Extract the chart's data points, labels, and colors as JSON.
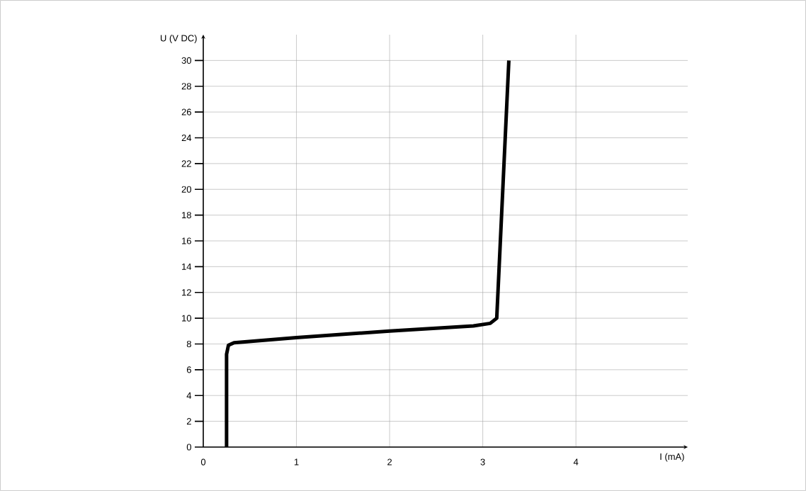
{
  "chart_data": {
    "type": "line",
    "xlabel": "I (mA)",
    "ylabel": "U (V DC)",
    "x": [
      0.25,
      0.25,
      0.27,
      0.33,
      1,
      2,
      2.9,
      3.08,
      3.15,
      3.28
    ],
    "values": [
      0,
      7.2,
      7.9,
      8.1,
      8.5,
      9,
      9.4,
      9.6,
      10,
      30
    ],
    "color": "#000000",
    "xlim": [
      0,
      5.2
    ],
    "ylim": [
      0,
      32
    ],
    "xticks": [
      0,
      1,
      2,
      3,
      4
    ],
    "yticks": [
      0,
      2,
      4,
      6,
      8,
      10,
      12,
      14,
      16,
      18,
      20,
      22,
      24,
      26,
      28,
      30
    ],
    "grid": true,
    "marker": "none",
    "line_style": "solid"
  }
}
